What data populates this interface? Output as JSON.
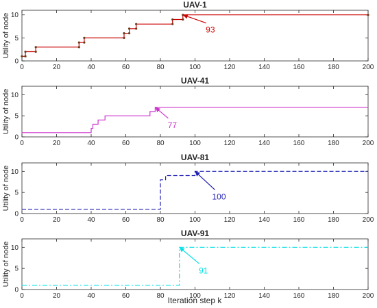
{
  "figure": {
    "xlabel": "Iteration step k",
    "colors": {
      "axis": "#262626",
      "grid_text": "#262626",
      "background": "#ffffff"
    }
  },
  "chart_data": [
    {
      "type": "line",
      "title": "UAV-1",
      "ylabel": "Utility of node",
      "xlim": [
        0,
        200
      ],
      "ylim": [
        0,
        11
      ],
      "xticks": [
        0,
        20,
        40,
        60,
        80,
        100,
        120,
        140,
        160,
        180,
        200
      ],
      "yticks": [
        0,
        5,
        10
      ],
      "color": "#cc0000",
      "style": "solid-with-markers",
      "series": [
        {
          "values": [
            [
              0,
              1
            ],
            [
              2,
              1
            ],
            [
              2,
              2
            ],
            [
              8,
              2
            ],
            [
              8,
              3
            ],
            [
              33,
              3
            ],
            [
              33,
              4
            ],
            [
              36,
              4
            ],
            [
              36,
              5
            ],
            [
              59,
              5
            ],
            [
              59,
              6
            ],
            [
              62,
              6
            ],
            [
              62,
              7
            ],
            [
              66,
              7
            ],
            [
              66,
              8
            ],
            [
              87,
              8
            ],
            [
              87,
              9
            ],
            [
              93,
              9
            ],
            [
              93,
              10
            ],
            [
              200,
              10
            ]
          ]
        }
      ],
      "annotation": {
        "text": "93",
        "x": 93,
        "y": 10
      }
    },
    {
      "type": "line",
      "title": "UAV-41",
      "ylabel": "Utility of node",
      "xlim": [
        0,
        200
      ],
      "ylim": [
        0,
        12
      ],
      "xticks": [
        0,
        20,
        40,
        60,
        80,
        100,
        120,
        140,
        160,
        180,
        200
      ],
      "yticks": [
        0,
        5,
        10
      ],
      "color": "#cc33cc",
      "style": "solid",
      "series": [
        {
          "values": [
            [
              0,
              1
            ],
            [
              40,
              1
            ],
            [
              40,
              2
            ],
            [
              41,
              2
            ],
            [
              41,
              3
            ],
            [
              44,
              3
            ],
            [
              44,
              4
            ],
            [
              48,
              4
            ],
            [
              48,
              5
            ],
            [
              74,
              5
            ],
            [
              74,
              6
            ],
            [
              77,
              6
            ],
            [
              77,
              7
            ],
            [
              200,
              7
            ]
          ]
        }
      ],
      "annotation": {
        "text": "77",
        "x": 77,
        "y": 7
      }
    },
    {
      "type": "line",
      "title": "UAV-81",
      "ylabel": "Utility of node",
      "xlim": [
        0,
        200
      ],
      "ylim": [
        0,
        12
      ],
      "xticks": [
        0,
        20,
        40,
        60,
        80,
        100,
        120,
        140,
        160,
        180,
        200
      ],
      "yticks": [
        0,
        5,
        10
      ],
      "color": "#1f1fb4",
      "style": "dashed",
      "series": [
        {
          "values": [
            [
              0,
              1
            ],
            [
              80,
              1
            ],
            [
              80,
              8
            ],
            [
              83,
              8
            ],
            [
              83,
              9
            ],
            [
              100,
              9
            ],
            [
              100,
              10
            ],
            [
              200,
              10
            ]
          ]
        }
      ],
      "annotation": {
        "text": "100",
        "x": 100,
        "y": 10
      }
    },
    {
      "type": "line",
      "title": "UAV-91",
      "ylabel": "Utility of node",
      "xlim": [
        0,
        200
      ],
      "ylim": [
        0,
        12
      ],
      "xticks": [
        0,
        20,
        40,
        60,
        80,
        100,
        120,
        140,
        160,
        180,
        200
      ],
      "yticks": [
        0,
        5,
        10
      ],
      "color": "#00e0e6",
      "style": "dashdot",
      "series": [
        {
          "values": [
            [
              0,
              1
            ],
            [
              91,
              1
            ],
            [
              91,
              10
            ],
            [
              200,
              10
            ]
          ]
        }
      ],
      "annotation": {
        "text": "91",
        "x": 91,
        "y": 10
      }
    }
  ]
}
